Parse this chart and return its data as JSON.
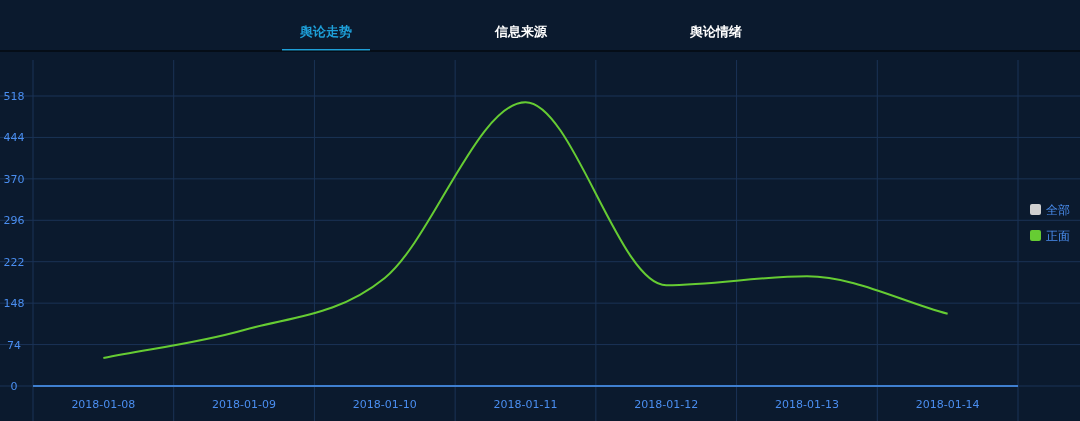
{
  "chart_data": {
    "type": "line",
    "categories": [
      "2018-01-08",
      "2018-01-09",
      "2018-01-10",
      "2018-01-11",
      "2018-01-12",
      "2018-01-13",
      "2018-01-14"
    ],
    "series": [
      {
        "name": "全部",
        "color": "#d0d0d0",
        "values": [
          null,
          null,
          null,
          null,
          null,
          null,
          null
        ]
      },
      {
        "name": "正面",
        "color": "#66cc33",
        "values": [
          50,
          100,
          193,
          507,
          180,
          196,
          129
        ]
      }
    ],
    "ylim": [
      0,
      518
    ],
    "yticks": [
      0,
      74,
      148,
      222,
      296,
      370,
      444,
      518
    ],
    "grid": true,
    "legend": "right",
    "marker": "none",
    "line_style": "solid",
    "annotations": [
      "舆论走势",
      "信息来源",
      "舆论情绪"
    ]
  }
}
